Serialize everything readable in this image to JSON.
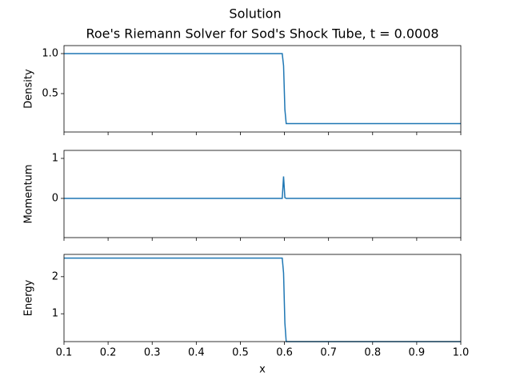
{
  "title": "Solution",
  "chart_data": [
    {
      "type": "line",
      "title": "Roe's Riemann Solver for Sod's Shock Tube, t = 0.0008",
      "ylabel": "Density",
      "color": "#1f77b4",
      "x": [
        0.1,
        0.595,
        0.598,
        0.601,
        0.604,
        0.607,
        1.0
      ],
      "values": [
        1.0,
        1.0,
        0.85,
        0.3,
        0.125,
        0.125,
        0.125
      ],
      "xlim": [
        0.1,
        1.0
      ],
      "xticks": [
        0.1,
        0.2,
        0.3,
        0.4,
        0.5,
        0.6,
        0.7,
        0.8,
        0.9,
        {
          "value": 1,
          "label": "1.0"
        }
      ],
      "ylim": [
        0.02,
        1.1
      ],
      "yticks": [
        0.5,
        {
          "value": 1,
          "label": "1.0"
        }
      ]
    },
    {
      "type": "line",
      "ylabel": "Momentum",
      "color": "#1f77b4",
      "x": [
        0.1,
        0.595,
        0.598,
        0.601,
        0.604,
        0.607,
        1.0
      ],
      "values": [
        0,
        0,
        0.55,
        0.02,
        0,
        0,
        0
      ],
      "xlim": [
        0.1,
        1.0
      ],
      "xticks": [
        0.1,
        0.2,
        0.3,
        0.4,
        0.5,
        0.6,
        0.7,
        0.8,
        0.9,
        {
          "value": 1,
          "label": "1.0"
        }
      ],
      "ylim": [
        -0.98,
        1.2
      ],
      "yticks": [
        0,
        1
      ]
    },
    {
      "type": "line",
      "ylabel": "Energy",
      "xlabel": "x",
      "color": "#1f77b4",
      "x": [
        0.1,
        0.595,
        0.598,
        0.601,
        0.604,
        0.607,
        1.0
      ],
      "values": [
        2.5,
        2.5,
        2.1,
        0.75,
        0.25,
        0.25,
        0.25
      ],
      "xlim": [
        0.1,
        1.0
      ],
      "xticks": [
        0.1,
        0.2,
        0.3,
        0.4,
        0.5,
        0.6,
        0.7,
        0.8,
        0.9,
        {
          "value": 1,
          "label": "1.0"
        }
      ],
      "ylim": [
        0.25,
        2.6
      ],
      "yticks": [
        1,
        2
      ]
    }
  ]
}
